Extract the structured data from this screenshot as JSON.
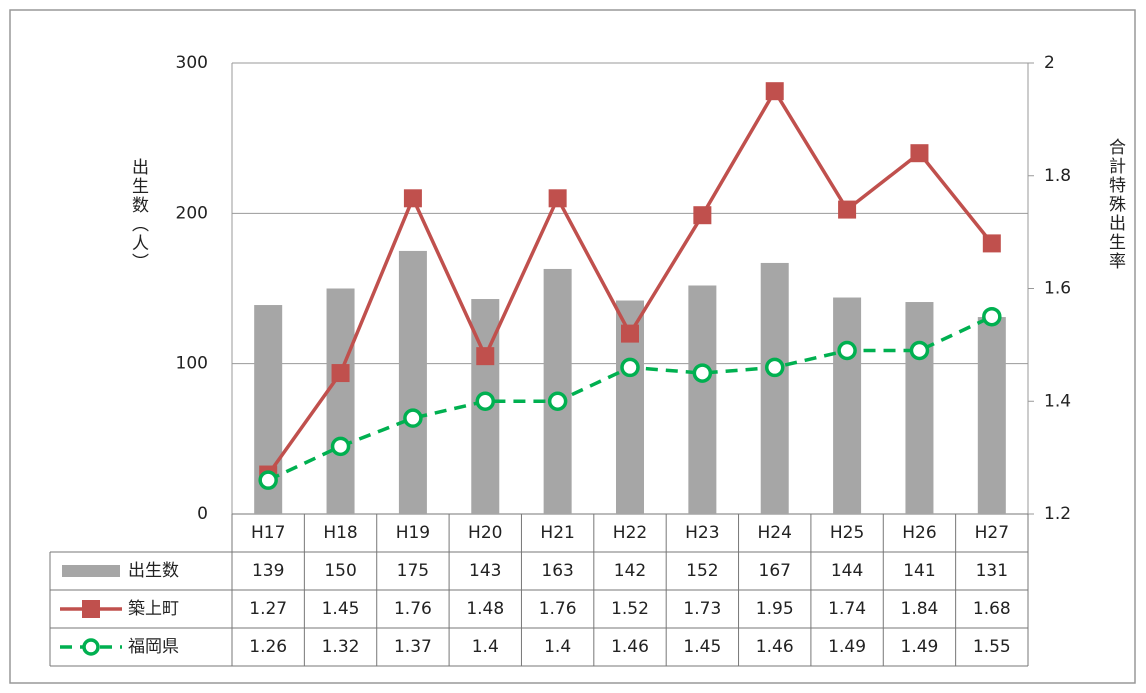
{
  "chart_data": {
    "type": "bar-line-table",
    "y_label": "出生数（人）",
    "y2_label": "合計特殊出生率",
    "categories": [
      "H17",
      "H18",
      "H19",
      "H20",
      "H21",
      "H22",
      "H23",
      "H24",
      "H25",
      "H26",
      "H27"
    ],
    "ylim": [
      0,
      300
    ],
    "yticks": [
      0,
      100,
      200,
      300
    ],
    "y2lim": [
      1.2,
      2
    ],
    "y2ticks": [
      1.2,
      1.4,
      1.6,
      1.8,
      2
    ],
    "grid": true,
    "series": [
      {
        "name": "出生数",
        "type": "bar",
        "color": "#a6a6a6",
        "values": [
          139,
          150,
          175,
          143,
          163,
          142,
          152,
          167,
          144,
          141,
          131
        ]
      },
      {
        "name": "築上町",
        "type": "line",
        "axis": "y2",
        "color": "#c0504d",
        "marker": "square",
        "line_style": "solid",
        "values": [
          1.27,
          1.45,
          1.76,
          1.48,
          1.76,
          1.52,
          1.73,
          1.95,
          1.74,
          1.84,
          1.68
        ]
      },
      {
        "name": "福岡県",
        "type": "line",
        "axis": "y2",
        "color": "#00b050",
        "marker": "circle",
        "line_style": "dashed",
        "values": [
          1.26,
          1.32,
          1.37,
          1.4,
          1.4,
          1.46,
          1.45,
          1.46,
          1.49,
          1.49,
          1.55
        ]
      }
    ]
  }
}
